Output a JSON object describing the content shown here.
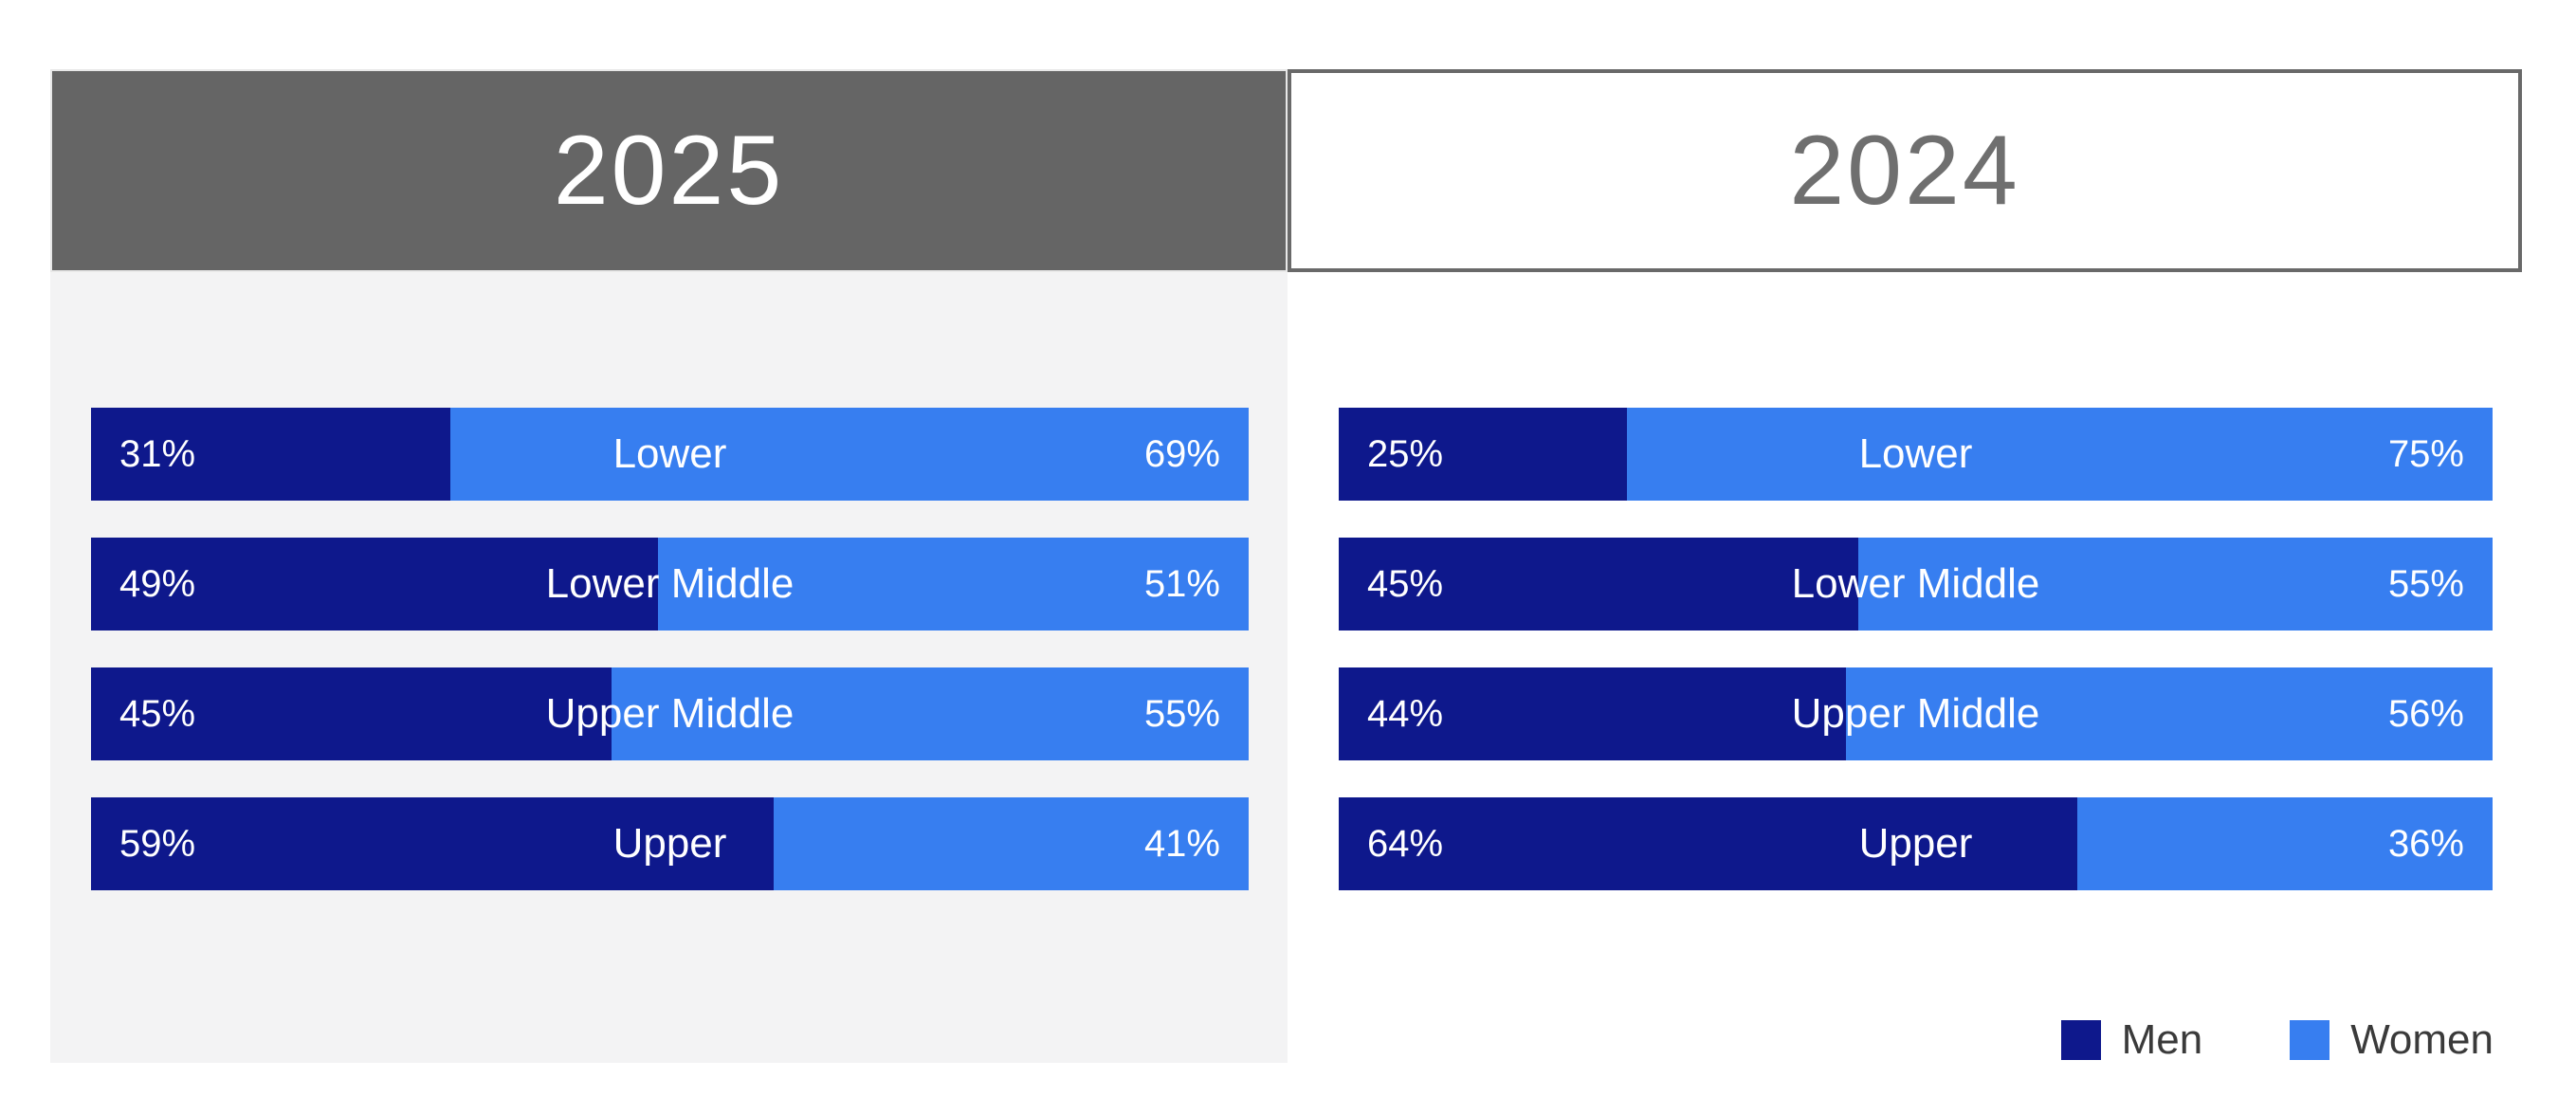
{
  "header": {
    "tabs": [
      {
        "label": "2025",
        "active": true
      },
      {
        "label": "2024",
        "active": false
      }
    ]
  },
  "panels": [
    {
      "year": "2025",
      "rows": [
        {
          "category": "Lower",
          "men_pct": 31,
          "women_pct": 69,
          "men_label": "31%",
          "women_label": "69%"
        },
        {
          "category": "Lower Middle",
          "men_pct": 49,
          "women_pct": 51,
          "men_label": "49%",
          "women_label": "51%"
        },
        {
          "category": "Upper Middle",
          "men_pct": 45,
          "women_pct": 55,
          "men_label": "45%",
          "women_label": "55%"
        },
        {
          "category": "Upper",
          "men_pct": 59,
          "women_pct": 41,
          "men_label": "59%",
          "women_label": "41%"
        }
      ]
    },
    {
      "year": "2024",
      "rows": [
        {
          "category": "Lower",
          "men_pct": 25,
          "women_pct": 75,
          "men_label": "25%",
          "women_label": "75%"
        },
        {
          "category": "Lower Middle",
          "men_pct": 45,
          "women_pct": 55,
          "men_label": "45%",
          "women_label": "55%"
        },
        {
          "category": "Upper Middle",
          "men_pct": 44,
          "women_pct": 56,
          "men_label": "44%",
          "women_label": "56%"
        },
        {
          "category": "Upper",
          "men_pct": 64,
          "women_pct": 36,
          "men_label": "64%",
          "women_label": "36%"
        }
      ]
    }
  ],
  "legend": {
    "men_label": "Men",
    "women_label": "Women"
  },
  "colors": {
    "men": "#0e188c",
    "women": "#377ef0",
    "header_active_bg": "#656565",
    "header_inactive_text": "#6f6f6f",
    "header_inactive_border": "#696969",
    "panel_bg": "#f3f3f4",
    "bar_text": "#ffffff",
    "legend_text": "#3a3a3a"
  },
  "chart_data": {
    "type": "bar",
    "subtype": "horizontal_stacked_100pct",
    "value_unit": "%",
    "categories": [
      "Lower",
      "Lower Middle",
      "Upper Middle",
      "Upper"
    ],
    "panels": [
      {
        "title": "2025",
        "series": [
          {
            "name": "Men",
            "values": [
              31,
              49,
              45,
              59
            ]
          },
          {
            "name": "Women",
            "values": [
              69,
              51,
              55,
              41
            ]
          }
        ]
      },
      {
        "title": "2024",
        "series": [
          {
            "name": "Men",
            "values": [
              25,
              45,
              44,
              64
            ]
          },
          {
            "name": "Women",
            "values": [
              75,
              55,
              56,
              36
            ]
          }
        ]
      }
    ],
    "legend": {
      "position": "bottom-right",
      "entries": [
        "Men",
        "Women"
      ]
    },
    "colors": {
      "Men": "#0e188c",
      "Women": "#377ef0"
    },
    "axis_labels_on_bars": true,
    "grid": false
  }
}
